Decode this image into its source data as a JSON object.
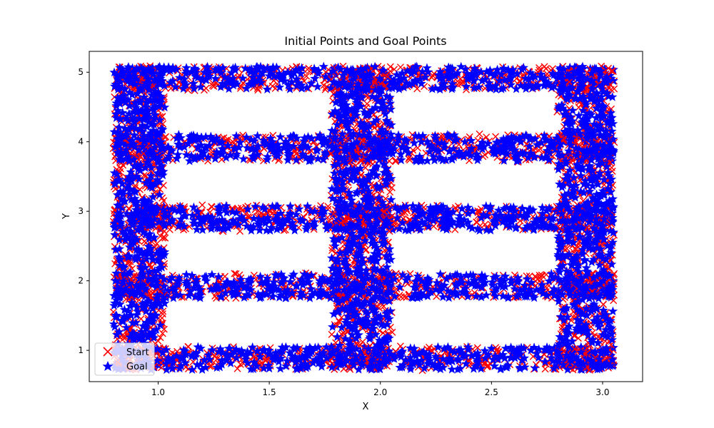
{
  "chart_data": {
    "type": "scatter",
    "title": "Initial Points and Goal Points",
    "xlabel": "X",
    "ylabel": "Y",
    "xlim": [
      0.69,
      3.18
    ],
    "ylim": [
      0.55,
      5.3
    ],
    "xticks": [
      1.0,
      1.5,
      2.0,
      2.5,
      3.0
    ],
    "xtick_labels": [
      "1.0",
      "1.5",
      "2.0",
      "2.5",
      "3.0"
    ],
    "yticks": [
      1,
      2,
      3,
      4,
      5
    ],
    "ytick_labels": [
      "1",
      "2",
      "3",
      "4",
      "5"
    ],
    "grid": false,
    "legend_position": "lower-left",
    "series": [
      {
        "name": "Start",
        "marker": "x",
        "color": "#ff0000"
      },
      {
        "name": "Goal",
        "marker": "star",
        "color": "#0000ff"
      }
    ],
    "free_space_regions": [
      {
        "x": [
          0.8,
          3.05
        ],
        "y": [
          0.72,
          1.05
        ]
      },
      {
        "x": [
          0.8,
          3.05
        ],
        "y": [
          1.75,
          2.1
        ]
      },
      {
        "x": [
          0.8,
          3.05
        ],
        "y": [
          2.72,
          3.08
        ]
      },
      {
        "x": [
          0.8,
          3.05
        ],
        "y": [
          3.72,
          4.1
        ]
      },
      {
        "x": [
          0.8,
          3.05
        ],
        "y": [
          4.75,
          5.08
        ]
      },
      {
        "x": [
          0.8,
          1.03
        ],
        "y": [
          0.72,
          5.08
        ]
      },
      {
        "x": [
          1.78,
          2.05
        ],
        "y": [
          0.72,
          5.08
        ]
      },
      {
        "x": [
          2.8,
          3.05
        ],
        "y": [
          0.72,
          5.08
        ]
      }
    ]
  }
}
